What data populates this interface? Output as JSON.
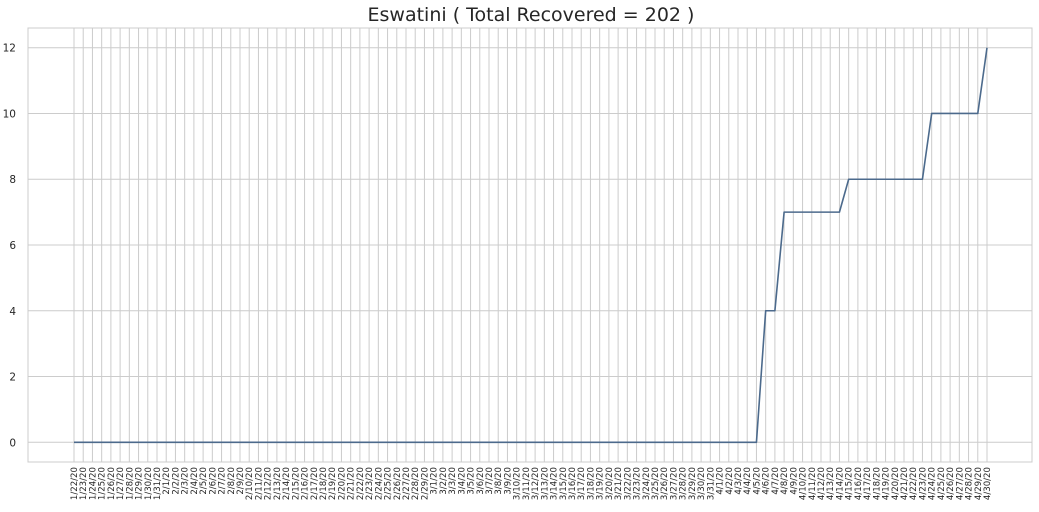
{
  "chart_data": {
    "type": "line",
    "title": "Eswatini ( Total Recovered = 202 )",
    "xlabel": "",
    "ylabel": "",
    "ylim": [
      -0.6,
      12.6
    ],
    "yticks": [
      0,
      2,
      4,
      6,
      8,
      10,
      12
    ],
    "grid": true,
    "legend": "none",
    "colors": {
      "line": "#4c6a8c",
      "grid": "#cccccc",
      "text": "#262626",
      "background": "#ffffff"
    },
    "x": [
      "1/22/20",
      "1/23/20",
      "1/24/20",
      "1/25/20",
      "1/26/20",
      "1/27/20",
      "1/28/20",
      "1/29/20",
      "1/30/20",
      "1/31/20",
      "2/1/20",
      "2/2/20",
      "2/3/20",
      "2/4/20",
      "2/5/20",
      "2/6/20",
      "2/7/20",
      "2/8/20",
      "2/9/20",
      "2/10/20",
      "2/11/20",
      "2/12/20",
      "2/13/20",
      "2/14/20",
      "2/15/20",
      "2/16/20",
      "2/17/20",
      "2/18/20",
      "2/19/20",
      "2/20/20",
      "2/21/20",
      "2/22/20",
      "2/23/20",
      "2/24/20",
      "2/25/20",
      "2/26/20",
      "2/27/20",
      "2/28/20",
      "2/29/20",
      "3/1/20",
      "3/2/20",
      "3/3/20",
      "3/4/20",
      "3/5/20",
      "3/6/20",
      "3/7/20",
      "3/8/20",
      "3/9/20",
      "3/10/20",
      "3/11/20",
      "3/12/20",
      "3/13/20",
      "3/14/20",
      "3/15/20",
      "3/16/20",
      "3/17/20",
      "3/18/20",
      "3/19/20",
      "3/20/20",
      "3/21/20",
      "3/22/20",
      "3/23/20",
      "3/24/20",
      "3/25/20",
      "3/26/20",
      "3/27/20",
      "3/28/20",
      "3/29/20",
      "3/30/20",
      "3/31/20",
      "4/1/20",
      "4/2/20",
      "4/3/20",
      "4/4/20",
      "4/5/20",
      "4/6/20",
      "4/7/20",
      "4/8/20",
      "4/9/20",
      "4/10/20",
      "4/11/20",
      "4/12/20",
      "4/13/20",
      "4/14/20",
      "4/15/20",
      "4/16/20",
      "4/17/20",
      "4/18/20",
      "4/19/20",
      "4/20/20",
      "4/21/20",
      "4/22/20",
      "4/23/20",
      "4/24/20",
      "4/25/20",
      "4/26/20",
      "4/27/20",
      "4/28/20",
      "4/29/20",
      "4/30/20"
    ],
    "series": [
      {
        "values": [
          0,
          0,
          0,
          0,
          0,
          0,
          0,
          0,
          0,
          0,
          0,
          0,
          0,
          0,
          0,
          0,
          0,
          0,
          0,
          0,
          0,
          0,
          0,
          0,
          0,
          0,
          0,
          0,
          0,
          0,
          0,
          0,
          0,
          0,
          0,
          0,
          0,
          0,
          0,
          0,
          0,
          0,
          0,
          0,
          0,
          0,
          0,
          0,
          0,
          0,
          0,
          0,
          0,
          0,
          0,
          0,
          0,
          0,
          0,
          0,
          0,
          0,
          0,
          0,
          0,
          0,
          0,
          0,
          0,
          0,
          0,
          0,
          0,
          0,
          0,
          4,
          4,
          7,
          7,
          7,
          7,
          7,
          7,
          7,
          8,
          8,
          8,
          8,
          8,
          8,
          8,
          8,
          8,
          10,
          10,
          10,
          10,
          10,
          10,
          12
        ]
      }
    ]
  }
}
